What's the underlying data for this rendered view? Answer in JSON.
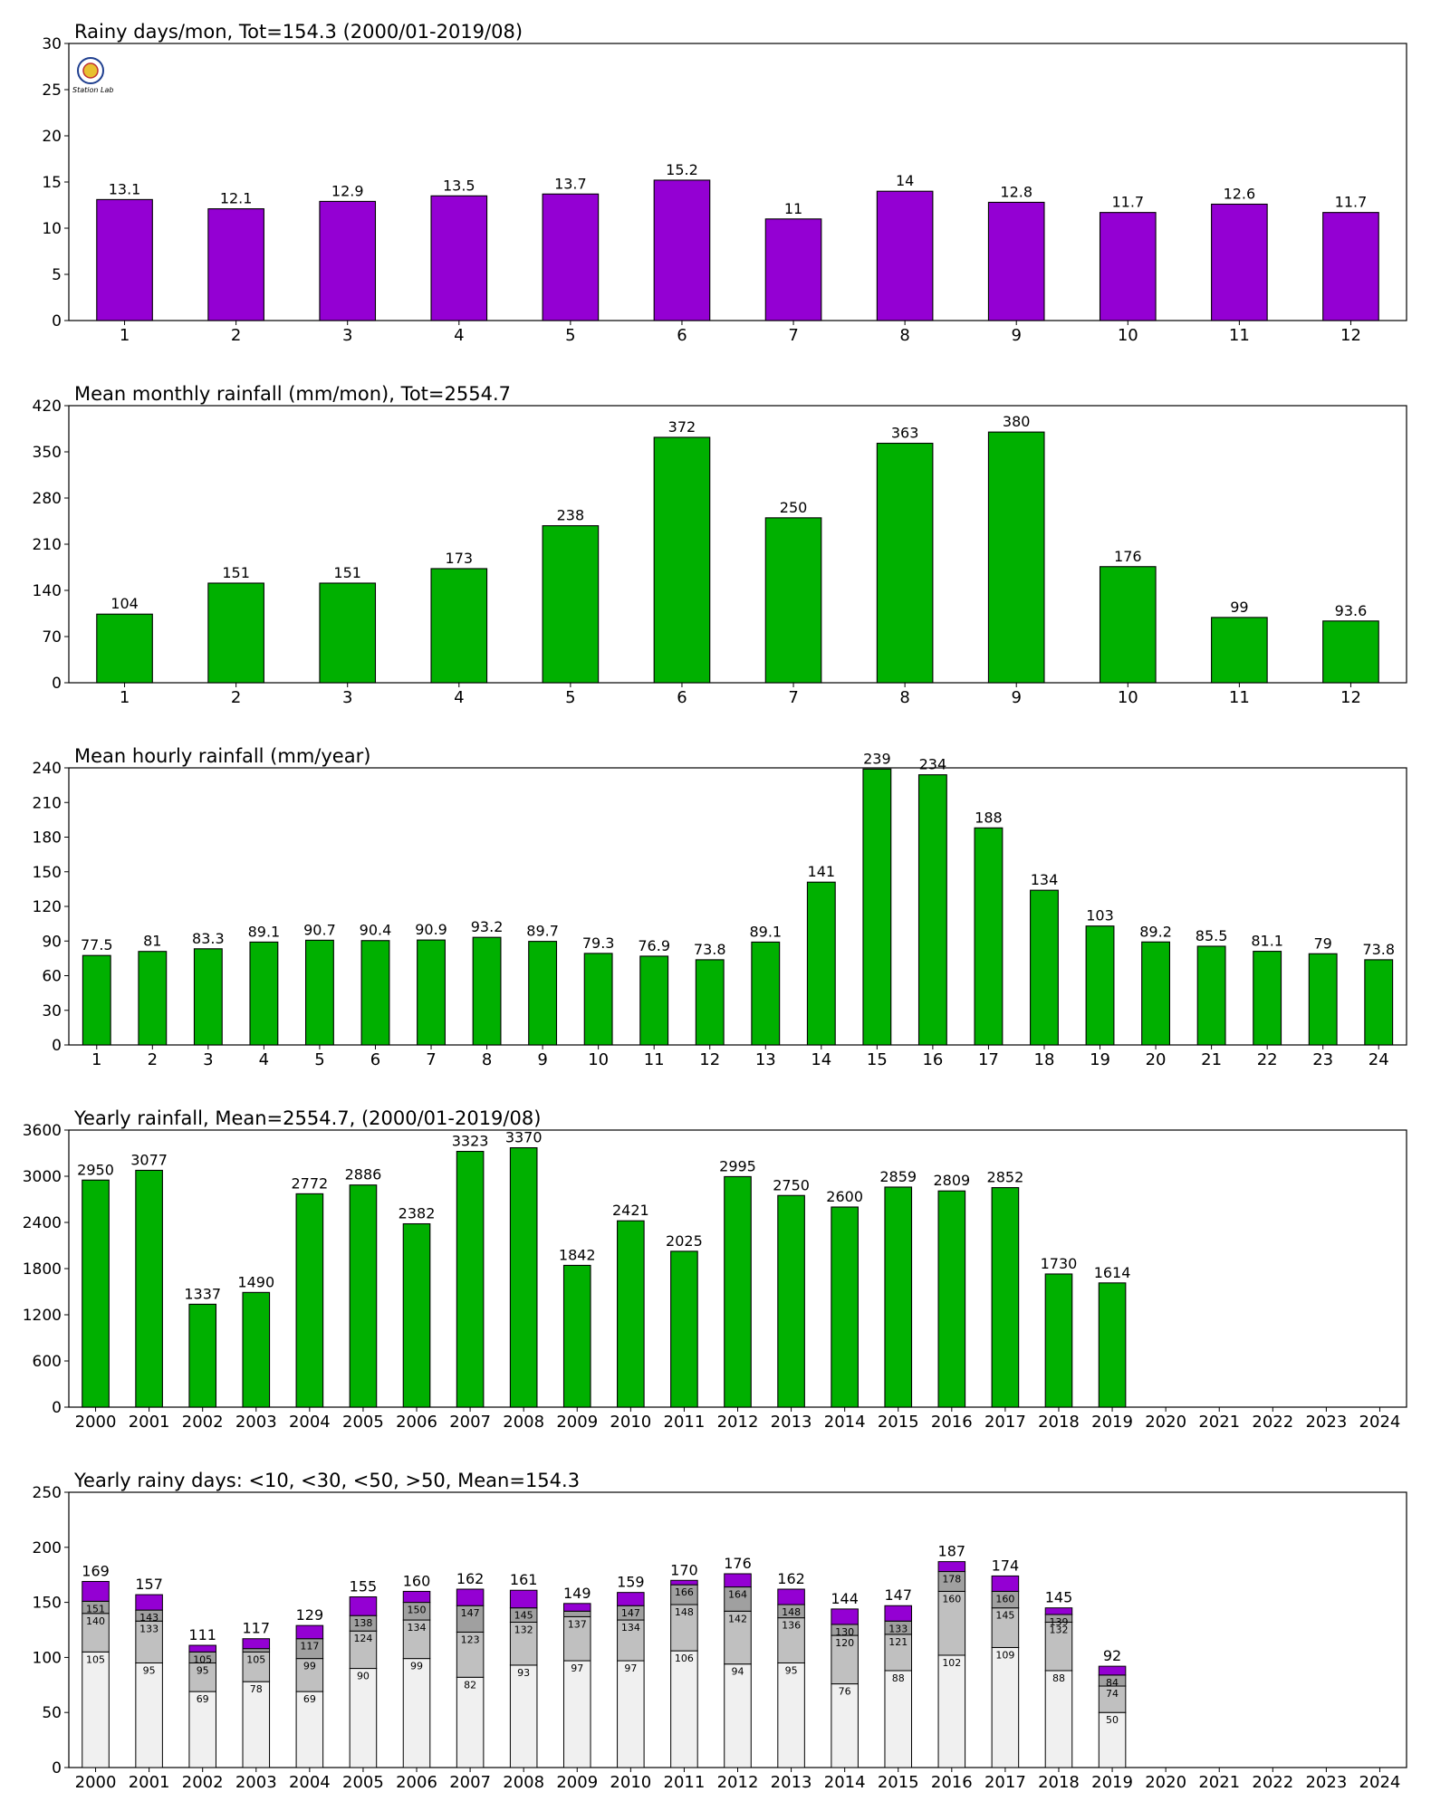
{
  "colors": {
    "purple": "#9400d3",
    "green": "#00b000",
    "light_gray": "#f0f0f0",
    "mid_gray": "#c0c0c0",
    "dark_gray": "#a0a0a0"
  },
  "logo": {
    "text": "Station Lab"
  },
  "chart_data": [
    {
      "type": "bar",
      "title": "Rainy days/mon, Tot=154.3 (2000/01-2019/08)",
      "categories": [
        "1",
        "2",
        "3",
        "4",
        "5",
        "6",
        "7",
        "8",
        "9",
        "10",
        "11",
        "12"
      ],
      "values": [
        13.1,
        12.1,
        12.9,
        13.5,
        13.7,
        15.2,
        11,
        14,
        12.8,
        11.7,
        12.6,
        11.7
      ],
      "labels": [
        "13.1",
        "12.1",
        "12.9",
        "13.5",
        "13.7",
        "15.2",
        "11",
        "14",
        "12.8",
        "11.7",
        "12.6",
        "11.7"
      ],
      "ylim": [
        0,
        30
      ],
      "yticks": [
        0,
        5,
        10,
        15,
        20,
        25,
        30
      ],
      "color": "#9400d3"
    },
    {
      "type": "bar",
      "title": "Mean monthly rainfall (mm/mon), Tot=2554.7",
      "categories": [
        "1",
        "2",
        "3",
        "4",
        "5",
        "6",
        "7",
        "8",
        "9",
        "10",
        "11",
        "12"
      ],
      "values": [
        104,
        151,
        151,
        173,
        238,
        372,
        250,
        363,
        380,
        176,
        99,
        93.6
      ],
      "labels": [
        "104",
        "151",
        "151",
        "173",
        "238",
        "372",
        "250",
        "363",
        "380",
        "176",
        "99",
        "93.6"
      ],
      "ylim": [
        0,
        420
      ],
      "yticks": [
        0,
        70,
        140,
        210,
        280,
        350,
        420
      ],
      "color": "#00b000"
    },
    {
      "type": "bar",
      "title": "Mean hourly rainfall (mm/year)",
      "categories": [
        "1",
        "2",
        "3",
        "4",
        "5",
        "6",
        "7",
        "8",
        "9",
        "10",
        "11",
        "12",
        "13",
        "14",
        "15",
        "16",
        "17",
        "18",
        "19",
        "20",
        "21",
        "22",
        "23",
        "24"
      ],
      "values": [
        77.5,
        81,
        83.3,
        89.1,
        90.7,
        90.4,
        90.9,
        93.2,
        89.7,
        79.3,
        76.9,
        73.8,
        89.1,
        141,
        239,
        234,
        188,
        134,
        103,
        89.2,
        85.5,
        81.1,
        79,
        73.8
      ],
      "labels": [
        "77.5",
        "81",
        "83.3",
        "89.1",
        "90.7",
        "90.4",
        "90.9",
        "93.2",
        "89.7",
        "79.3",
        "76.9",
        "73.8",
        "89.1",
        "141",
        "239",
        "234",
        "188",
        "134",
        "103",
        "89.2",
        "85.5",
        "81.1",
        "79",
        "73.8"
      ],
      "ylim": [
        0,
        240
      ],
      "yticks": [
        0,
        30,
        60,
        90,
        120,
        150,
        180,
        210,
        240
      ],
      "color": "#00b000"
    },
    {
      "type": "bar",
      "title": "Yearly rainfall, Mean=2554.7, (2000/01-2019/08)",
      "categories": [
        "2000",
        "2001",
        "2002",
        "2003",
        "2004",
        "2005",
        "2006",
        "2007",
        "2008",
        "2009",
        "2010",
        "2011",
        "2012",
        "2013",
        "2014",
        "2015",
        "2016",
        "2017",
        "2018",
        "2019",
        "2020",
        "2021",
        "2022",
        "2023",
        "2024"
      ],
      "values": [
        2950,
        3077,
        1337,
        1490,
        2772,
        2886,
        2382,
        3323,
        3370,
        1842,
        2421,
        2025,
        2995,
        2750,
        2600,
        2859,
        2809,
        2852,
        1730,
        1614,
        null,
        null,
        null,
        null,
        null
      ],
      "labels": [
        "2950",
        "3077",
        "1337",
        "1490",
        "2772",
        "2886",
        "2382",
        "3323",
        "3370",
        "1842",
        "2421",
        "2025",
        "2995",
        "2750",
        "2600",
        "2859",
        "2809",
        "2852",
        "1730",
        "1614",
        "",
        "",
        "",
        "",
        ""
      ],
      "ylim": [
        0,
        3600
      ],
      "yticks": [
        0,
        600,
        1200,
        1800,
        2400,
        3000,
        3600
      ],
      "color": "#00b000"
    },
    {
      "type": "stacked_bar",
      "title": "Yearly rainy days: <10, <30, <50, >50, Mean=154.3",
      "categories": [
        "2000",
        "2001",
        "2002",
        "2003",
        "2004",
        "2005",
        "2006",
        "2007",
        "2008",
        "2009",
        "2010",
        "2011",
        "2012",
        "2013",
        "2014",
        "2015",
        "2016",
        "2017",
        "2018",
        "2019",
        "2020",
        "2021",
        "2022",
        "2023",
        "2024"
      ],
      "cumulative_lt10": [
        105,
        95,
        69,
        78,
        69,
        90,
        99,
        82,
        93,
        97,
        97,
        106,
        94,
        95,
        76,
        88,
        102,
        109,
        88,
        50,
        null,
        null,
        null,
        null,
        null
      ],
      "cumulative_lt30": [
        140,
        133,
        95,
        105,
        99,
        124,
        134,
        123,
        132,
        137,
        134,
        148,
        142,
        136,
        120,
        121,
        160,
        145,
        132,
        74,
        null,
        null,
        null,
        null,
        null
      ],
      "cumulative_lt50": [
        151,
        143,
        105,
        108,
        117,
        138,
        150,
        147,
        145,
        142,
        147,
        166,
        164,
        148,
        130,
        133,
        178,
        160,
        139,
        84,
        null,
        null,
        null,
        null,
        null
      ],
      "totals": [
        169,
        157,
        111,
        117,
        129,
        155,
        160,
        162,
        161,
        149,
        159,
        170,
        176,
        162,
        144,
        147,
        187,
        174,
        145,
        92,
        null,
        null,
        null,
        null,
        null
      ],
      "seg1_labels": [
        "105",
        "95",
        "69",
        "78",
        "69",
        "90",
        "99",
        "82",
        "93",
        "97",
        "97",
        "106",
        "94",
        "95",
        "76",
        "88",
        "102",
        "109",
        "88",
        "50",
        "",
        "",
        "",
        "",
        ""
      ],
      "seg2_labels": [
        "140",
        "133",
        "95",
        "105",
        "99",
        "124",
        "134",
        "123",
        "132",
        "137",
        "134",
        "148",
        "142",
        "136",
        "120",
        "121",
        "160",
        "145",
        "132",
        "74",
        "",
        "",
        "",
        "",
        ""
      ],
      "seg3_labels": [
        "151",
        "143",
        "105",
        "",
        "117",
        "138",
        "150",
        "147",
        "145",
        "",
        "147",
        "166",
        "164",
        "148",
        "130",
        "133",
        "178",
        "160",
        "139",
        "84",
        "",
        "",
        "",
        "",
        ""
      ],
      "total_labels": [
        "169",
        "157",
        "111",
        "117",
        "129",
        "155",
        "160",
        "162",
        "161",
        "149",
        "159",
        "170",
        "176",
        "162",
        "144",
        "147",
        "187",
        "174",
        "145",
        "92",
        "",
        "",
        "",
        "",
        ""
      ],
      "ylim": [
        0,
        250
      ],
      "yticks": [
        0,
        50,
        100,
        150,
        200,
        250
      ]
    }
  ]
}
